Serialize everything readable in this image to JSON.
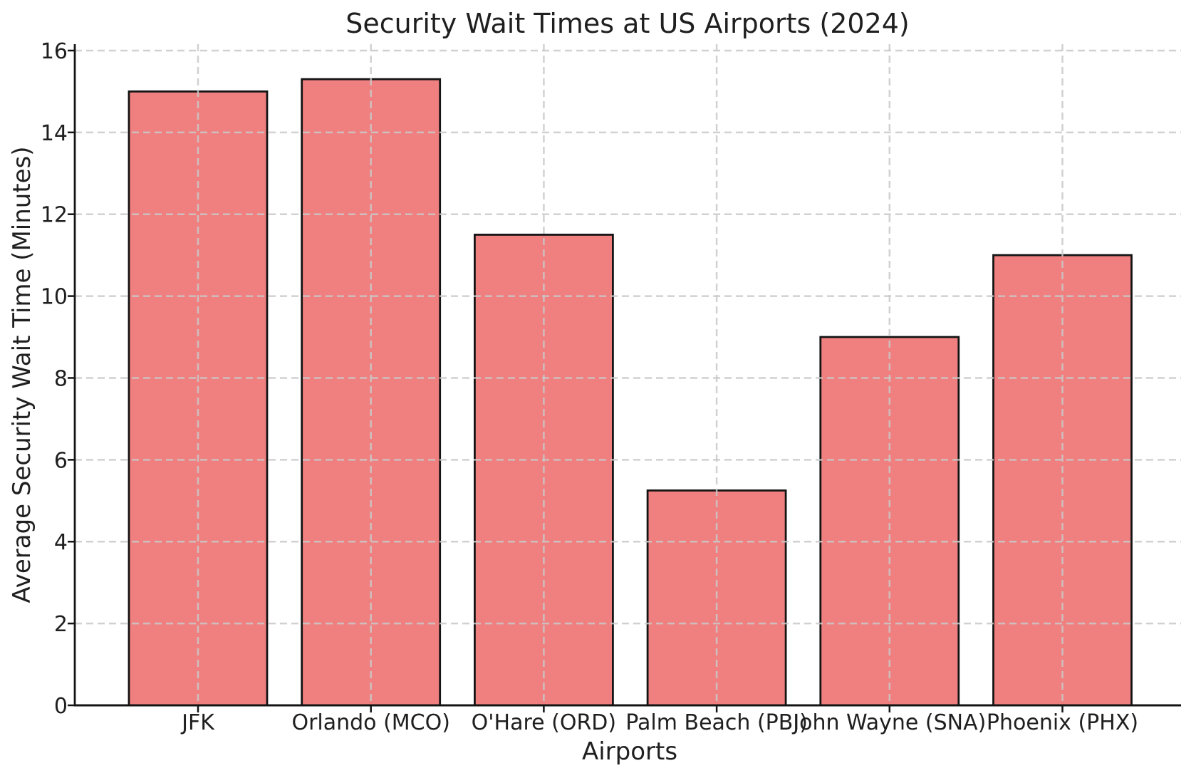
{
  "chart_data": {
    "type": "bar",
    "title": "Security Wait Times at US Airports (2024)",
    "xlabel": "Airports",
    "ylabel": "Average Security Wait Time (Minutes)",
    "categories": [
      "JFK",
      "Orlando (MCO)",
      "O'Hare (ORD)",
      "Palm Beach (PBI)",
      "John Wayne (SNA)",
      "Phoenix (PHX)"
    ],
    "values": [
      15.0,
      15.3,
      11.5,
      5.25,
      9.0,
      11.0
    ],
    "yticks": [
      0,
      2,
      4,
      6,
      8,
      10,
      12,
      14,
      16
    ],
    "ylim": [
      0,
      16.15
    ],
    "legend": "none",
    "grid": {
      "style": "dashed",
      "axes": "both",
      "above_bars": true
    },
    "colors": {
      "bar_fill": "#F08080",
      "bar_edge": "#141414",
      "grid_line": "#c9c9c9",
      "spine": "#141414",
      "text": "#1f1f1f",
      "background": "#ffffff"
    }
  }
}
